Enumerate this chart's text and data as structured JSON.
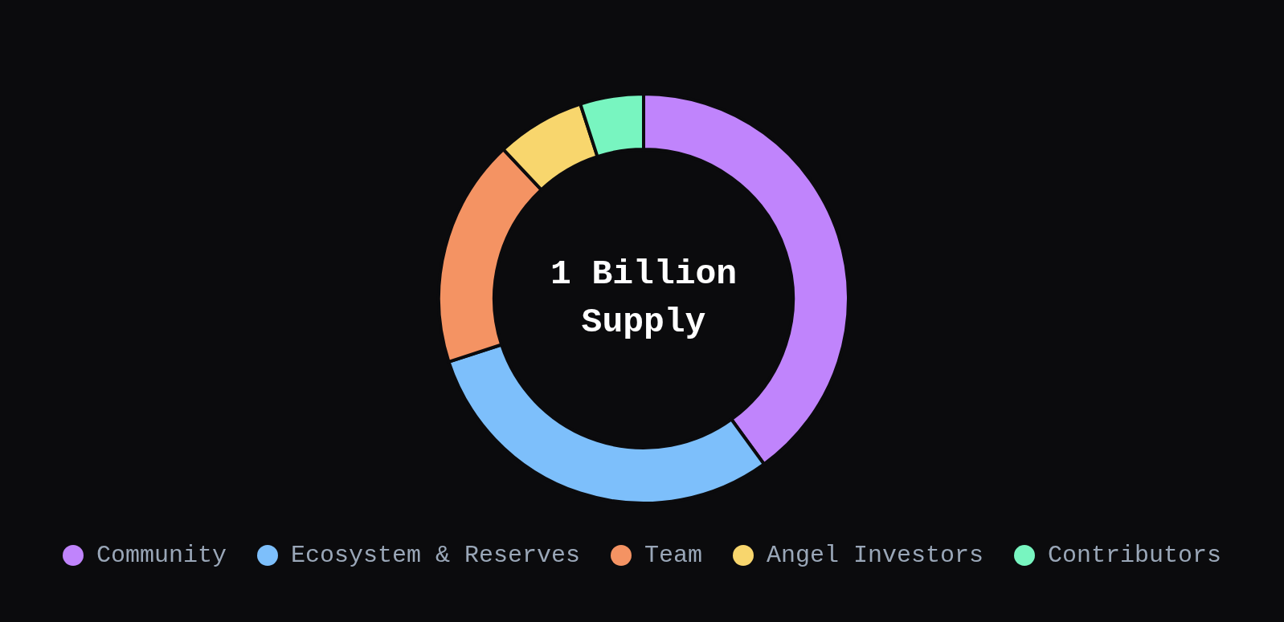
{
  "chart_data": {
    "type": "donut",
    "categories": [
      "Community",
      "Ecosystem & Reserves",
      "Team",
      "Angel Investors",
      "Contributors"
    ],
    "values": [
      40,
      30,
      18,
      7,
      5
    ],
    "colors": [
      "#c084fc",
      "#7dbffb",
      "#f49363",
      "#f8d66d",
      "#78f5c0"
    ],
    "annotations": [
      "1 Billion Supply"
    ],
    "legend": "bottom"
  }
}
